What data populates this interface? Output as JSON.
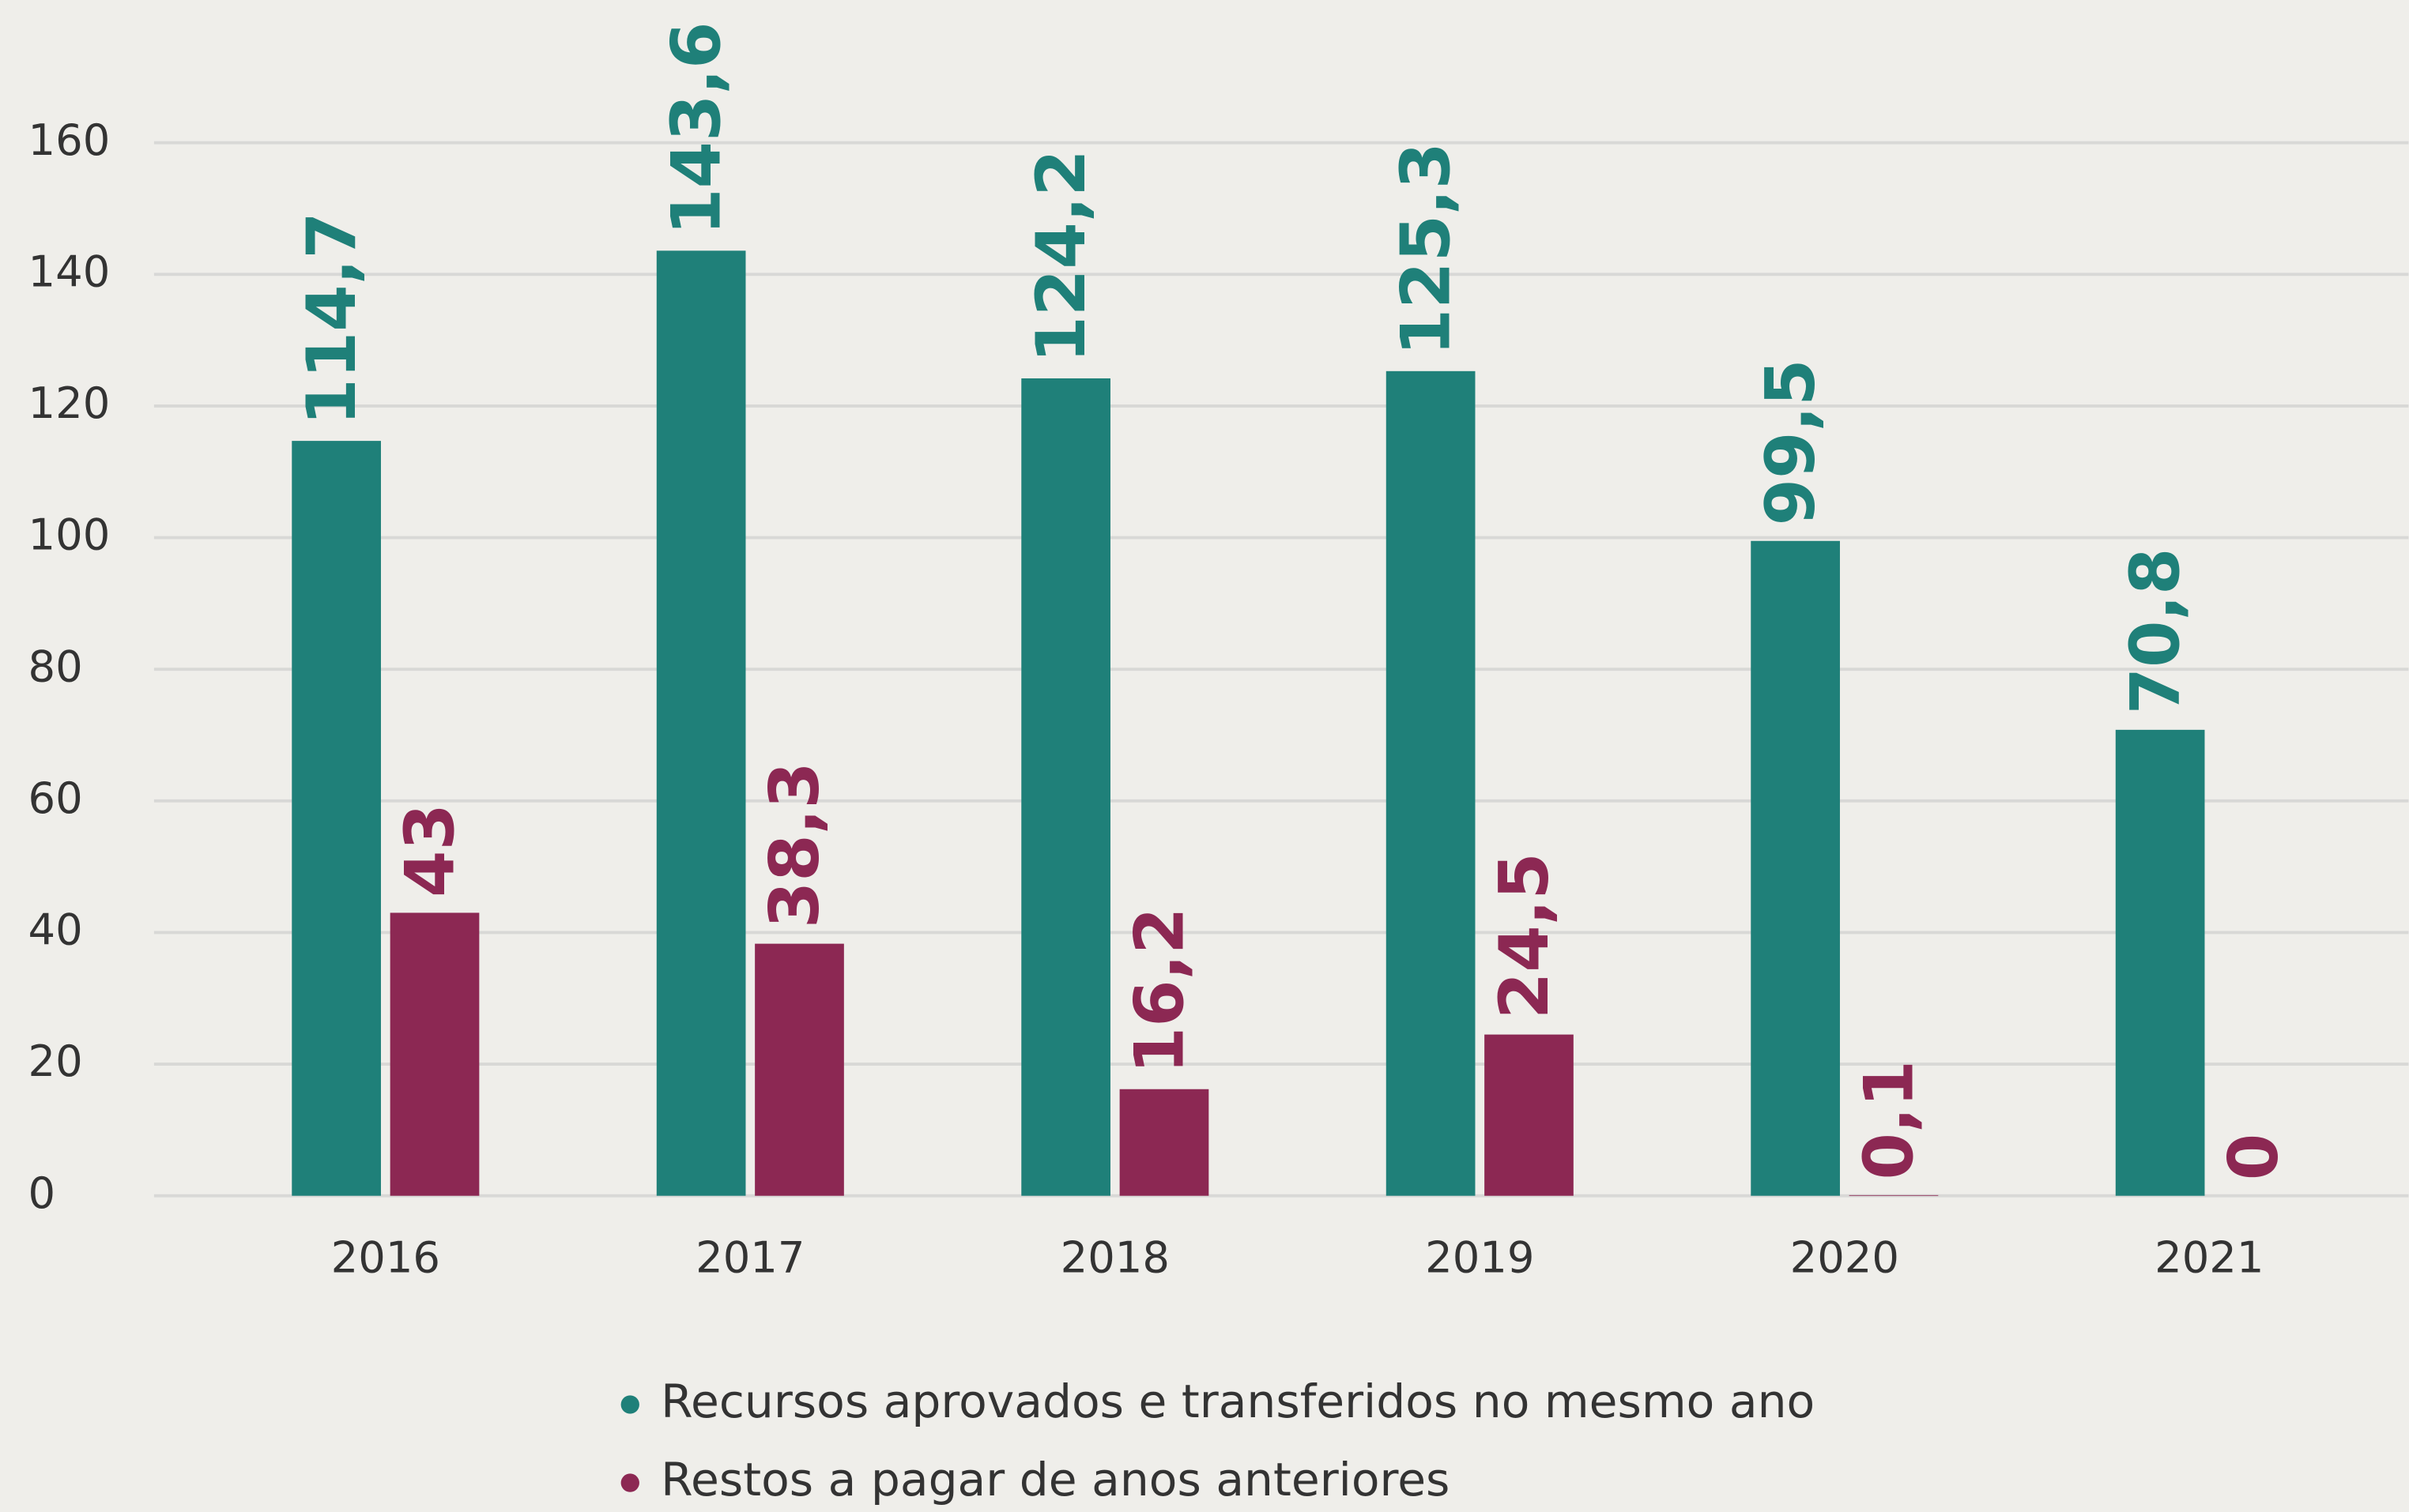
{
  "chart_data": {
    "type": "bar",
    "categories": [
      "2016",
      "2017",
      "2018",
      "2019",
      "2020",
      "2021"
    ],
    "series": [
      {
        "name": "Recursos aprovados e transferidos no mesmo ano",
        "color": "#1f8079",
        "values": [
          114.7,
          143.6,
          124.2,
          125.3,
          99.5,
          70.8
        ],
        "value_labels": [
          "114,7",
          "143,6",
          "124,2",
          "125,3",
          "99,5",
          "70,8"
        ]
      },
      {
        "name": "Restos a pagar de anos anteriores",
        "color": "#8c2853",
        "values": [
          43,
          38.3,
          16.2,
          24.5,
          0.1,
          0
        ],
        "value_labels": [
          "43",
          "38,3",
          "16,2",
          "24,5",
          "0,1",
          "0"
        ]
      }
    ],
    "ylim": [
      0,
      160
    ],
    "yticks": [
      0,
      20,
      40,
      60,
      80,
      100,
      120,
      140,
      160
    ],
    "grid": true
  }
}
